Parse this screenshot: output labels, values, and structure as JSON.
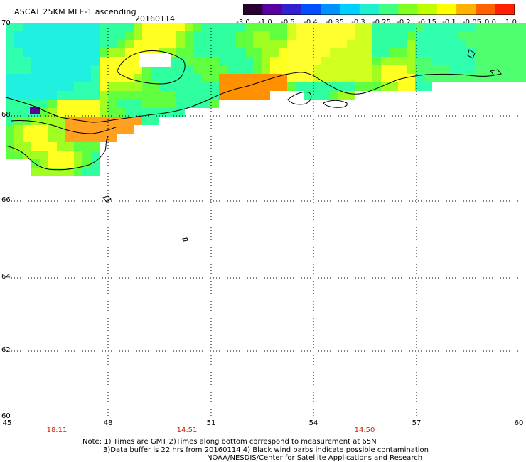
{
  "header": {
    "title": "ASCAT 25KM MLE-1 ascending",
    "date": "20160114"
  },
  "colorbar": {
    "labels": [
      "-3.0",
      "-1.0",
      "-0.5",
      "-0.4",
      "-0.35",
      "-0.3",
      "-0.25",
      "-0.2",
      "-0.15",
      "-0.1",
      "-0.05",
      "0.0",
      "1.0"
    ],
    "colors": [
      "#2a0030",
      "#5a00a0",
      "#3020d0",
      "#0050ff",
      "#0090ff",
      "#00d0ff",
      "#20f0d0",
      "#40ff80",
      "#80ff20",
      "#c0ff00",
      "#ffff00",
      "#ffb000",
      "#ff6000",
      "#ff2000"
    ]
  },
  "axes": {
    "lat_labels": [
      "70",
      "68",
      "66",
      "64",
      "62",
      "60"
    ],
    "lon_labels": [
      "45",
      "48",
      "51",
      "54",
      "57",
      "60"
    ],
    "time_labels": [
      "18:11",
      "14:51",
      "14:50"
    ]
  },
  "notes": {
    "line1": "Note: 1) Times are GMT 2)Times along bottom correspond to measurement at 65N",
    "line2": "3)Data buffer is 22 hrs from 20160114 4) Black wind barbs indicate possible contamination",
    "line3": "NOAA/NESDIS/Center for Satellite Applications and Research"
  }
}
